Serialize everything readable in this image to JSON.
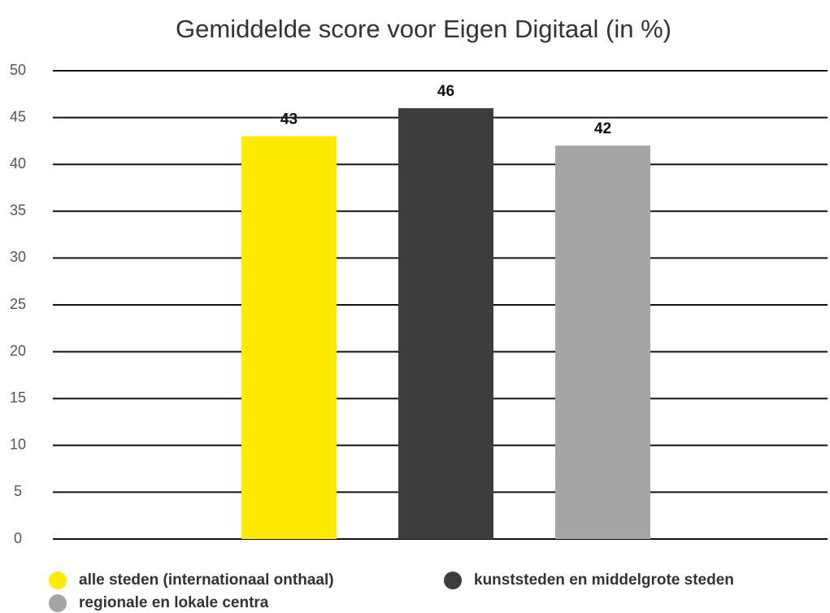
{
  "chart_data": {
    "type": "bar",
    "title": "Gemiddelde score voor Eigen Digitaal (in %)",
    "categories": [
      null
    ],
    "series": [
      {
        "name": "alle steden (internationaal onthaal)",
        "color": "#ffea00",
        "values": [
          43
        ]
      },
      {
        "name": "kunststeden en middelgrote steden",
        "color": "#3d3d3d",
        "values": [
          46
        ]
      },
      {
        "name": "regionale en lokale centra",
        "color": "#a5a5a5",
        "values": [
          42
        ]
      }
    ],
    "ylim": [
      0,
      50
    ],
    "yticks": [
      0,
      5,
      10,
      15,
      20,
      25,
      30,
      35,
      40,
      45,
      50
    ],
    "grid": true,
    "legend": "bottom"
  }
}
